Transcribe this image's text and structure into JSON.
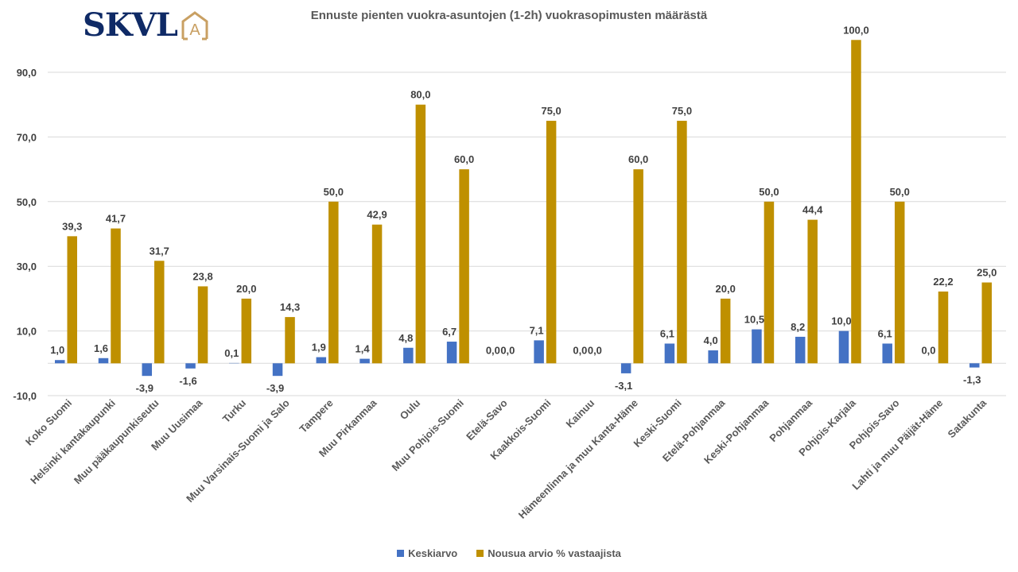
{
  "logo": {
    "text": "SKVL",
    "icon": "house-a-icon",
    "text_color": "#0f2a66",
    "icon_color": "#c9a063"
  },
  "chart_data": {
    "type": "bar",
    "title": "Ennuste pienten vuokra-asuntojen (1-2h) vuokrasopimusten määrästä",
    "xlabel": "",
    "ylabel": "",
    "ylim": [
      -10,
      100
    ],
    "yticks": [
      -10,
      10,
      30,
      50,
      70,
      90
    ],
    "ytick_labels": [
      "-10,0",
      "10,0",
      "30,0",
      "50,0",
      "70,0",
      "90,0"
    ],
    "grid": true,
    "legend_position": "bottom",
    "categories": [
      "Koko Suomi",
      "Helsinki kantakaupunki",
      "Muu pääkaupunkiseutu",
      "Muu Uusimaa",
      "Turku",
      "Muu Varsinais-Suomi ja Salo",
      "Tampere",
      "Muu Pirkanmaa",
      "Oulu",
      "Muu Pohjois-Suomi",
      "Etelä-Savo",
      "Kaakkois-Suomi",
      "Kainuu",
      "Hämeenlinna ja muu Kanta-Häme",
      "Keski-Suomi",
      "Etelä-Pohjanmaa",
      "Keski-Pohjanmaa",
      "Pohjanmaa",
      "Pohjois-Karjala",
      "Pohjois-Savo",
      "Lahti ja muu Päijät-Häme",
      "Satakunta"
    ],
    "series": [
      {
        "name": "Keskiarvo",
        "color": "#4472c4",
        "values": [
          1.0,
          1.6,
          -3.9,
          -1.6,
          0.1,
          -3.9,
          1.9,
          1.4,
          4.8,
          6.7,
          0.0,
          7.1,
          0.0,
          -3.1,
          6.1,
          4.0,
          10.5,
          8.2,
          10.0,
          6.1,
          0.0,
          -1.3
        ],
        "labels": [
          "1,0",
          "1,6",
          "-3,9",
          "-1,6",
          "0,1",
          "-3,9",
          "1,9",
          "1,4",
          "4,8",
          "6,7",
          "0,0",
          "7,1",
          "0,0",
          "-3,1",
          "6,1",
          "4,0",
          "10,5",
          "8,2",
          "10,0",
          "6,1",
          "0,0",
          "-1,3"
        ]
      },
      {
        "name": "Nousua arvio % vastaajista",
        "color": "#bf9000",
        "values": [
          39.3,
          41.7,
          31.7,
          23.8,
          20.0,
          14.3,
          50.0,
          42.9,
          80.0,
          60.0,
          0.0,
          75.0,
          0.0,
          60.0,
          75.0,
          20.0,
          50.0,
          44.4,
          100.0,
          50.0,
          22.2,
          25.0
        ],
        "labels": [
          "39,3",
          "41,7",
          "31,7",
          "23,8",
          "20,0",
          "14,3",
          "50,0",
          "42,9",
          "80,0",
          "60,0",
          "0,0",
          "75,0",
          "0,0",
          "60,0",
          "75,0",
          "20,0",
          "50,0",
          "44,4",
          "100,0",
          "50,0",
          "22,2",
          "25,0"
        ]
      }
    ]
  }
}
